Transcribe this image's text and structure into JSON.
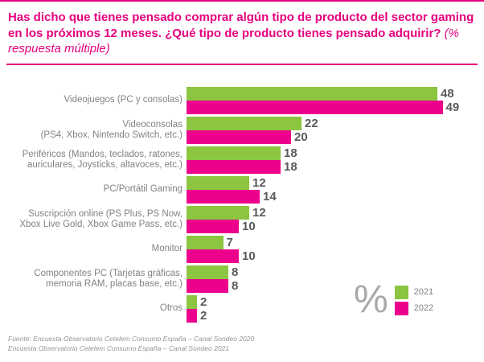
{
  "header": {
    "title_bold": "Has dicho que tienes pensado comprar algún tipo de producto del sector gaming en los próximos 12 meses. ¿Qué tipo de producto tienes pensado adquirir?",
    "title_note": "(% respuesta múltiple)"
  },
  "chart_data": {
    "type": "bar",
    "orientation": "horizontal",
    "title": "Has dicho que tienes pensado comprar algún tipo de producto del sector gaming en los próximos 12 meses. ¿Qué tipo de producto tienes pensado adquirir? (% respuesta múltiple)",
    "unit": "%",
    "xlim": [
      0,
      50
    ],
    "grid": false,
    "value_labels": true,
    "legend_position": "bottom-right",
    "categories": [
      "Videojuegos (PC y consolas)",
      "Videoconsolas (PS4, Xbox, Nintendo Switch, etc.)",
      "Periféricos (Mandos, teclados, ratones, auriculares, Joysticks, altavoces, etc.)",
      "PC/Portátil Gaming",
      "Suscripción online (PS Plus, PS Now, Xbox Live Gold, Xbox Game Pass, etc.)",
      "Monitor",
      "Componentes PC (Tarjetas gráficas, memoria RAM, placas base, etc.)",
      "Otros"
    ],
    "category_lines": [
      [
        "Videojuegos (PC y consolas)"
      ],
      [
        "Videoconsolas",
        "(PS4, Xbox, Nintendo Switch, etc.)"
      ],
      [
        "Periféricos (Mandos, teclados, ratones,",
        "auriculares, Joysticks, altavoces, etc.)"
      ],
      [
        "PC/Portátil Gaming"
      ],
      [
        "Suscripción online (PS Plus, PS Now,",
        "Xbox Live Gold, Xbox Game Pass, etc.)"
      ],
      [
        "Monitor"
      ],
      [
        "Componentes PC (Tarjetas gráficas,",
        "memoria RAM, placas base, etc.)"
      ],
      [
        "Otros"
      ]
    ],
    "series": [
      {
        "name": "2021",
        "color": "#8CC540",
        "values": [
          48,
          22,
          18,
          12,
          12,
          7,
          8,
          2
        ]
      },
      {
        "name": "2022",
        "color": "#EC008C",
        "values": [
          49,
          20,
          18,
          14,
          10,
          10,
          8,
          2
        ]
      }
    ]
  },
  "legend": {
    "unit_symbol": "%",
    "items": [
      {
        "label": "2021",
        "color": "#8CC540"
      },
      {
        "label": "2022",
        "color": "#EC008C"
      }
    ]
  },
  "footer": {
    "line1": "Fuente: Encuesta Observatorio Cetelem Consumo España – Canal Sondeo 2020",
    "line2": "Encuesta Observatorio Cetelem Consumo España – Canal Sondeo 2021"
  },
  "colors": {
    "accent_magenta": "#E6007E",
    "bar_green": "#8CC540",
    "bar_magenta": "#EC008C",
    "label_gray": "#808285",
    "value_gray": "#58595B",
    "percent_gray": "#A7A9AC"
  }
}
